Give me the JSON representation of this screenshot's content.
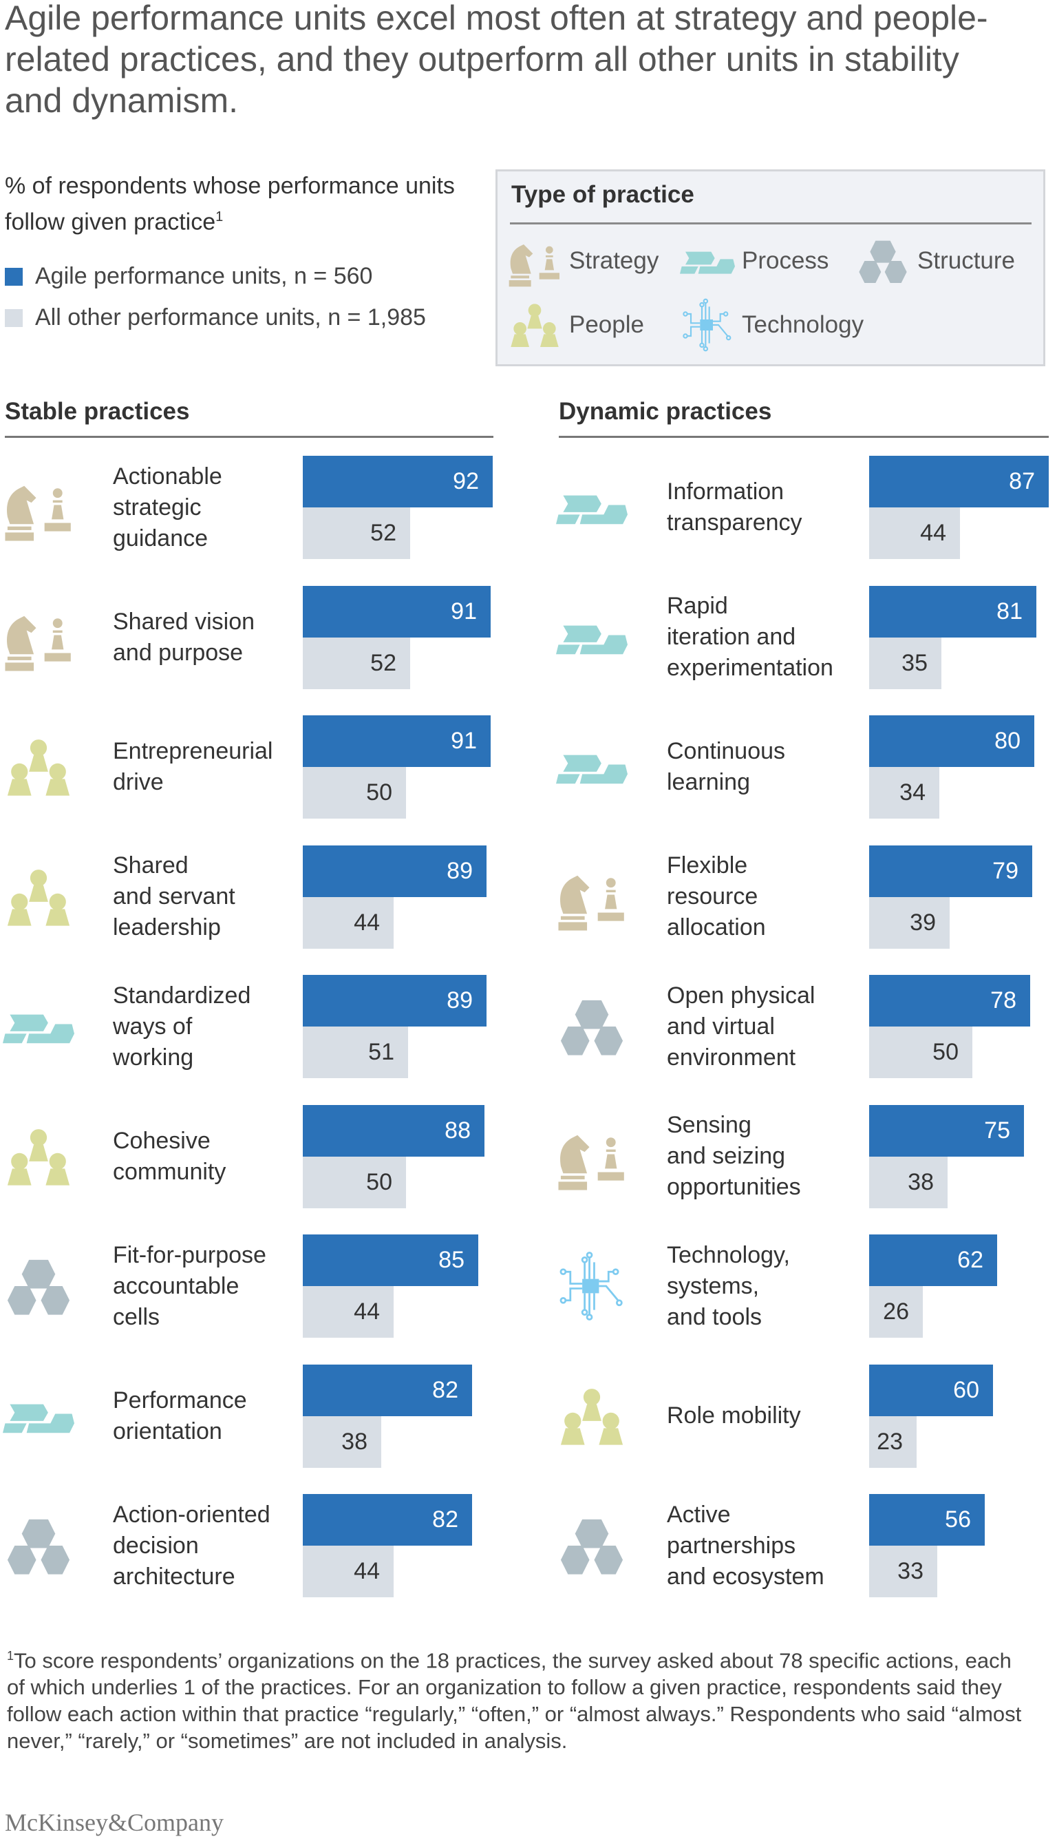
{
  "title": "Agile performance units excel most often at strategy and people-related practices, and they outperform all other units in stability and dynamism.",
  "subtitle": "% of respondents whose performance units follow given practice",
  "subtitle_footnote_marker": "1",
  "legend": [
    {
      "label": "Agile performance units, n = 560",
      "color": "#2b72b8"
    },
    {
      "label": "All other performance units, n = 1,985",
      "color": "#d8dee5"
    }
  ],
  "type_box": {
    "title": "Type of practice",
    "types": [
      {
        "key": "strategy",
        "label": "Strategy",
        "color": "#d0c4a6",
        "icon": "chess-knight-pawn-icon"
      },
      {
        "key": "process",
        "label": "Process",
        "color": "#9ad6d6",
        "icon": "chevron-arrows-icon"
      },
      {
        "key": "structure",
        "label": "Structure",
        "color": "#b0bec5",
        "icon": "hexagons-icon"
      },
      {
        "key": "people",
        "label": "People",
        "color": "#d9dc9a",
        "icon": "people-pawns-icon"
      },
      {
        "key": "technology",
        "label": "Technology",
        "color": "#7ecbf0",
        "icon": "circuit-chip-icon"
      }
    ]
  },
  "chart_data": [
    {
      "type": "bar",
      "orientation": "horizontal",
      "title": "Stable practices",
      "xlim": [
        0,
        100
      ],
      "categories": [
        "Actionable\nstrategic\nguidance",
        "Shared vision\nand purpose",
        "Entrepreneurial\ndrive",
        "Shared\nand servant\nleadership",
        "Standardized\nways of\nworking",
        "Cohesive\ncommunity",
        "Fit-for-purpose\naccountable\ncells",
        "Performance\norientation",
        "Action-oriented\ndecision\narchitecture"
      ],
      "category_types": [
        "strategy",
        "strategy",
        "people",
        "people",
        "process",
        "people",
        "structure",
        "process",
        "structure"
      ],
      "series": [
        {
          "name": "Agile performance units, n = 560",
          "values": [
            92,
            91,
            91,
            89,
            89,
            88,
            85,
            82,
            82
          ]
        },
        {
          "name": "All other performance units, n = 1,985",
          "values": [
            52,
            52,
            50,
            44,
            51,
            50,
            44,
            38,
            44
          ]
        }
      ]
    },
    {
      "type": "bar",
      "orientation": "horizontal",
      "title": "Dynamic practices",
      "xlim": [
        0,
        100
      ],
      "categories": [
        "Information\ntransparency",
        "Rapid\niteration and\nexperimentation",
        "Continuous\nlearning",
        "Flexible\nresource\nallocation",
        "Open physical\nand virtual\nenvironment",
        "Sensing\nand seizing\nopportunities",
        "Technology,\nsystems,\nand tools",
        "Role mobility",
        "Active\npartnerships\nand ecosystem"
      ],
      "category_types": [
        "process",
        "process",
        "process",
        "strategy",
        "structure",
        "strategy",
        "technology",
        "people",
        "structure"
      ],
      "series": [
        {
          "name": "Agile performance units, n = 560",
          "values": [
            87,
            81,
            80,
            79,
            78,
            75,
            62,
            60,
            56
          ]
        },
        {
          "name": "All other performance units, n = 1,985",
          "values": [
            44,
            35,
            34,
            39,
            50,
            38,
            26,
            23,
            33
          ]
        }
      ]
    }
  ],
  "footnote_marker": "1",
  "footnote": "To score respondents’ organizations on the 18 practices, the survey asked about 78 specific actions, each of which underlies 1 of the practices. For an organization to follow a given practice, respondents said they follow each action within that practice “regularly,” “often,” or “almost always.” Respondents who said “almost never,” “rarely,” or “sometimes” are not included in analysis.",
  "logo": "McKinsey&Company"
}
